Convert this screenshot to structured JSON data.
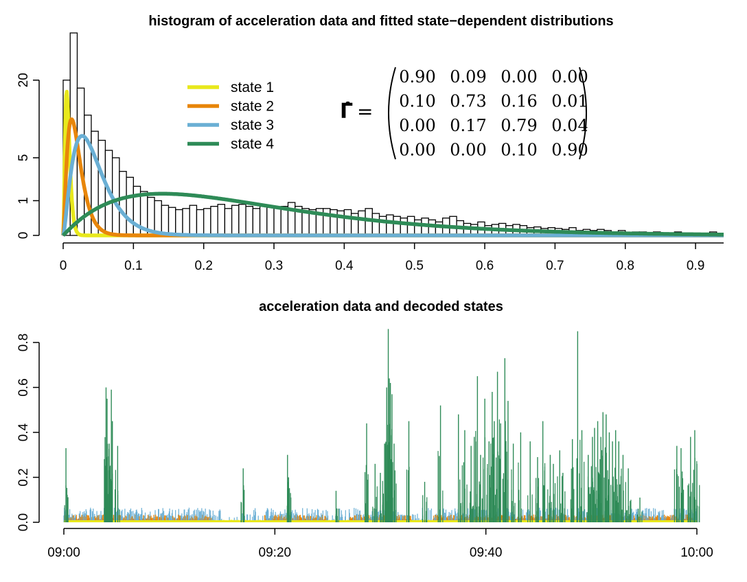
{
  "chart_data": [
    {
      "type": "histogram",
      "title": "histogram of acceleration data and fitted state−dependent distributions",
      "xlabel": "",
      "ylabel": "",
      "xlim": [
        0,
        0.94
      ],
      "x_ticks": [
        "0",
        "0.1",
        "0.2",
        "0.3",
        "0.4",
        "0.5",
        "0.6",
        "0.7",
        "0.8",
        "0.9"
      ],
      "x_tick_values": [
        0,
        0.1,
        0.2,
        0.3,
        0.4,
        0.5,
        0.6,
        0.7,
        0.8,
        0.9
      ],
      "y_scale": "sqrt",
      "y_ticks": [
        "0",
        "1",
        "5",
        "20"
      ],
      "y_tick_values": [
        0,
        1,
        5,
        20
      ],
      "ylim": [
        0,
        34
      ],
      "bin_width": 0.01,
      "bin_densities": [
        20,
        34,
        18,
        12,
        9,
        7.5,
        6,
        5,
        3.4,
        2.8,
        2.0,
        1.6,
        1.2,
        1.0,
        0.75,
        0.65,
        0.55,
        0.6,
        0.75,
        0.55,
        0.6,
        0.7,
        0.8,
        0.6,
        0.75,
        0.8,
        0.7,
        0.6,
        0.7,
        0.65,
        0.6,
        0.7,
        0.9,
        0.7,
        0.6,
        0.55,
        0.6,
        0.6,
        0.55,
        0.5,
        0.55,
        0.4,
        0.5,
        0.6,
        0.4,
        0.3,
        0.35,
        0.3,
        0.25,
        0.3,
        0.2,
        0.25,
        0.2,
        0.15,
        0.25,
        0.3,
        0.18,
        0.12,
        0.1,
        0.15,
        0.08,
        0.1,
        0.12,
        0.08,
        0.1,
        0.08,
        0.05,
        0.06,
        0.04,
        0.05,
        0.04,
        0.03,
        0.05,
        0.02,
        0.03,
        0.02,
        0.03,
        0.02,
        0.01,
        0.02,
        0.0,
        0.01,
        0.01,
        0.0,
        0.01,
        0.0,
        0.0,
        0.01,
        0.0,
        0.0,
        0.0,
        0.0,
        0.01,
        0.0
      ],
      "series": [
        {
          "name": "state 1",
          "color": "#e8e81c",
          "distribution": "gamma",
          "mean": 0.006,
          "sd": 0.0025
        },
        {
          "name": "state 2",
          "color": "#e8860a",
          "distribution": "gamma",
          "mean": 0.016,
          "sd": 0.008
        },
        {
          "name": "state 3",
          "color": "#6aafd4",
          "distribution": "gamma",
          "mean": 0.036,
          "sd": 0.018
        },
        {
          "name": "state 4",
          "color": "#2e8b57",
          "distribution": "gamma",
          "mean": 0.21,
          "sd": 0.12
        }
      ],
      "legend_placement": "top-center-left",
      "annotation": {
        "label": "Γ̂ =",
        "matrix": [
          [
            "0.90",
            "0.09",
            "0.00",
            "0.00"
          ],
          [
            "0.10",
            "0.73",
            "0.16",
            "0.01"
          ],
          [
            "0.00",
            "0.17",
            "0.79",
            "0.04"
          ],
          [
            "0.00",
            "0.00",
            "0.10",
            "0.90"
          ]
        ]
      }
    },
    {
      "type": "line",
      "title": "acceleration data and decoded states",
      "xlabel": "",
      "ylabel": "",
      "x_ticks": [
        "09:00",
        "09:20",
        "09:40",
        "10:00"
      ],
      "x_tick_minutes": [
        0,
        20,
        40,
        60
      ],
      "xlim_minutes": [
        0,
        60
      ],
      "y_ticks": [
        "0.0",
        "0.2",
        "0.4",
        "0.6",
        "0.8"
      ],
      "y_tick_values": [
        0,
        0.2,
        0.4,
        0.6,
        0.8
      ],
      "ylim": [
        0,
        0.86
      ],
      "series": [
        {
          "name": "state 1",
          "color": "#e8e81c"
        },
        {
          "name": "state 2",
          "color": "#e8860a"
        },
        {
          "name": "state 3",
          "color": "#6aafd4"
        },
        {
          "name": "state 4",
          "color": "#2e8b57"
        }
      ],
      "spikes": [
        {
          "t": 0.2,
          "v": 0.33
        },
        {
          "t": 4.0,
          "v": 0.6
        },
        {
          "t": 4.1,
          "v": 0.55
        },
        {
          "t": 4.3,
          "v": 0.35
        },
        {
          "t": 4.5,
          "v": 0.59
        },
        {
          "t": 4.6,
          "v": 0.45
        },
        {
          "t": 5.1,
          "v": 0.34
        },
        {
          "t": 17.0,
          "v": 0.24
        },
        {
          "t": 21.2,
          "v": 0.3
        },
        {
          "t": 21.3,
          "v": 0.2
        },
        {
          "t": 25.8,
          "v": 0.14
        },
        {
          "t": 28.7,
          "v": 0.44
        },
        {
          "t": 29.5,
          "v": 0.26
        },
        {
          "t": 30.0,
          "v": 0.22
        },
        {
          "t": 30.4,
          "v": 0.35
        },
        {
          "t": 30.6,
          "v": 0.6
        },
        {
          "t": 30.75,
          "v": 0.86
        },
        {
          "t": 30.85,
          "v": 0.64
        },
        {
          "t": 30.95,
          "v": 0.62
        },
        {
          "t": 31.1,
          "v": 0.57
        },
        {
          "t": 31.3,
          "v": 0.35
        },
        {
          "t": 32.7,
          "v": 0.45
        },
        {
          "t": 34.2,
          "v": 0.18
        },
        {
          "t": 35.7,
          "v": 0.52
        },
        {
          "t": 37.4,
          "v": 0.48
        },
        {
          "t": 38.0,
          "v": 0.41
        },
        {
          "t": 38.6,
          "v": 0.34
        },
        {
          "t": 38.9,
          "v": 0.38
        },
        {
          "t": 39.2,
          "v": 0.65
        },
        {
          "t": 39.5,
          "v": 0.3
        },
        {
          "t": 39.9,
          "v": 0.55
        },
        {
          "t": 40.3,
          "v": 0.36
        },
        {
          "t": 40.6,
          "v": 0.58
        },
        {
          "t": 40.8,
          "v": 0.45
        },
        {
          "t": 41.1,
          "v": 0.67
        },
        {
          "t": 41.4,
          "v": 0.44
        },
        {
          "t": 41.8,
          "v": 0.73
        },
        {
          "t": 42.1,
          "v": 0.54
        },
        {
          "t": 42.6,
          "v": 0.35
        },
        {
          "t": 43.3,
          "v": 0.4
        },
        {
          "t": 44.2,
          "v": 0.36
        },
        {
          "t": 44.9,
          "v": 0.29
        },
        {
          "t": 45.4,
          "v": 0.45
        },
        {
          "t": 46.1,
          "v": 0.3
        },
        {
          "t": 46.4,
          "v": 0.26
        },
        {
          "t": 47.0,
          "v": 0.32
        },
        {
          "t": 47.3,
          "v": 0.22
        },
        {
          "t": 48.2,
          "v": 0.37
        },
        {
          "t": 48.7,
          "v": 0.85
        },
        {
          "t": 49.1,
          "v": 0.41
        },
        {
          "t": 49.7,
          "v": 0.3
        },
        {
          "t": 50.1,
          "v": 0.38
        },
        {
          "t": 50.3,
          "v": 0.42
        },
        {
          "t": 50.6,
          "v": 0.45
        },
        {
          "t": 50.9,
          "v": 0.38
        },
        {
          "t": 51.1,
          "v": 0.49
        },
        {
          "t": 51.4,
          "v": 0.48
        },
        {
          "t": 51.7,
          "v": 0.4
        },
        {
          "t": 52.0,
          "v": 0.36
        },
        {
          "t": 52.3,
          "v": 0.41
        },
        {
          "t": 52.6,
          "v": 0.36
        },
        {
          "t": 53.0,
          "v": 0.3
        },
        {
          "t": 53.5,
          "v": 0.24
        },
        {
          "t": 54.6,
          "v": 0.11
        },
        {
          "t": 58.1,
          "v": 0.34
        },
        {
          "t": 58.5,
          "v": 0.33
        },
        {
          "t": 59.4,
          "v": 0.38
        },
        {
          "t": 59.8,
          "v": 0.41
        },
        {
          "t": 60.0,
          "v": 0.26
        }
      ],
      "grid": false
    }
  ]
}
